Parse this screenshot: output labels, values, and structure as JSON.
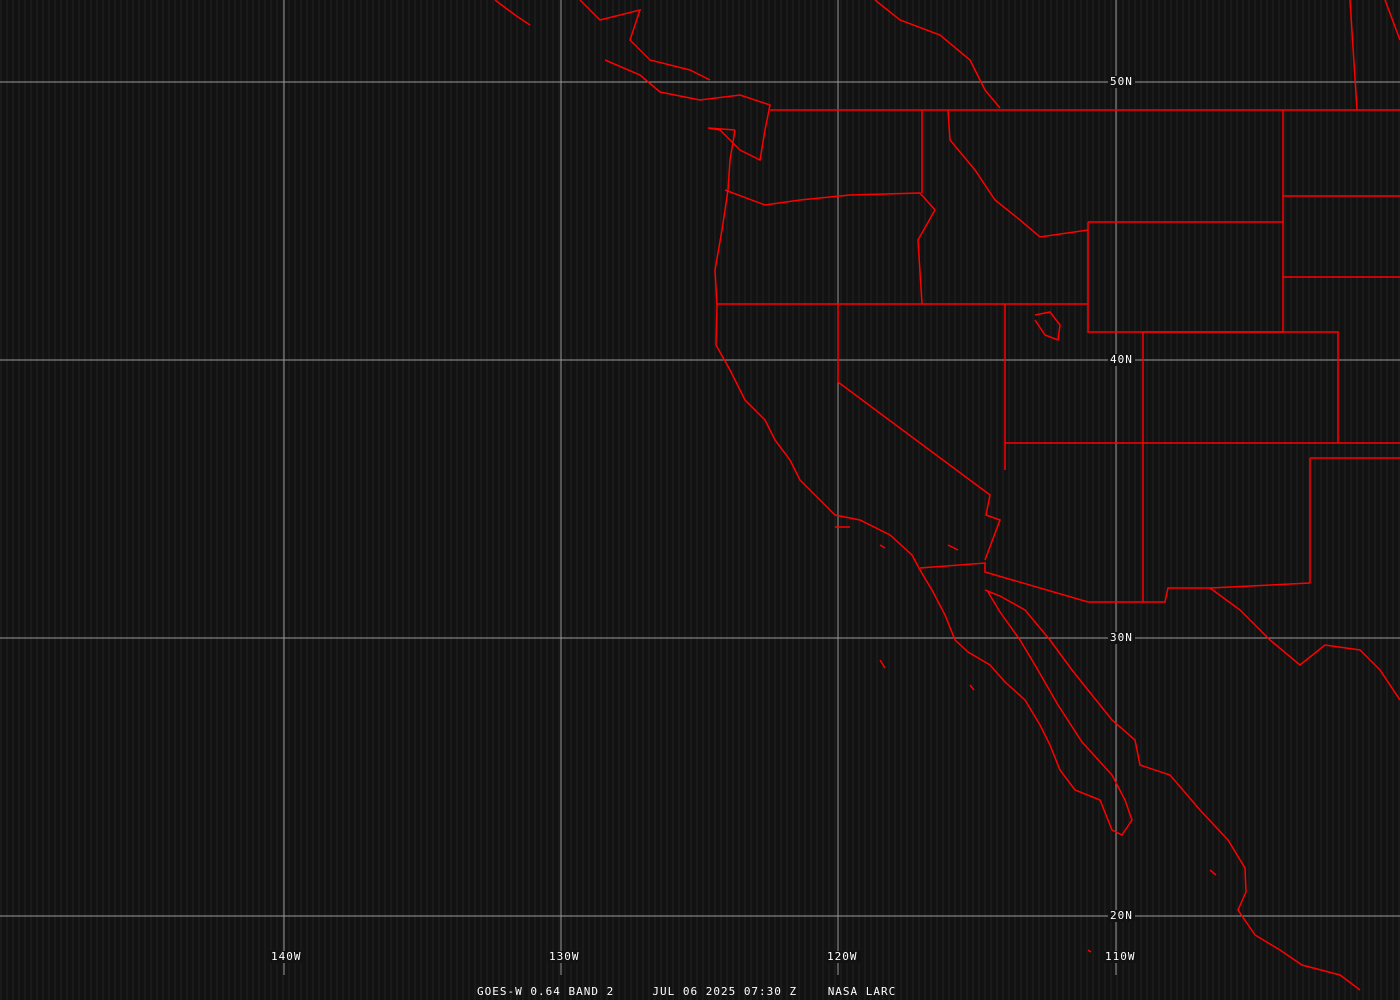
{
  "product": {
    "satellite": "GOES-W 0.64 BAND 2",
    "datetime": "JUL 06 2025 07:30 Z",
    "credit": "NASA LARC"
  },
  "grid": {
    "lat_labels": [
      "50N",
      "40N",
      "30N",
      "20N"
    ],
    "lon_labels": [
      "140W",
      "130W",
      "120W",
      "110W"
    ]
  },
  "colors": {
    "background": "#121212",
    "borders": "#ff0000",
    "grid": "#9a9a9a",
    "text": "#ffffff"
  }
}
